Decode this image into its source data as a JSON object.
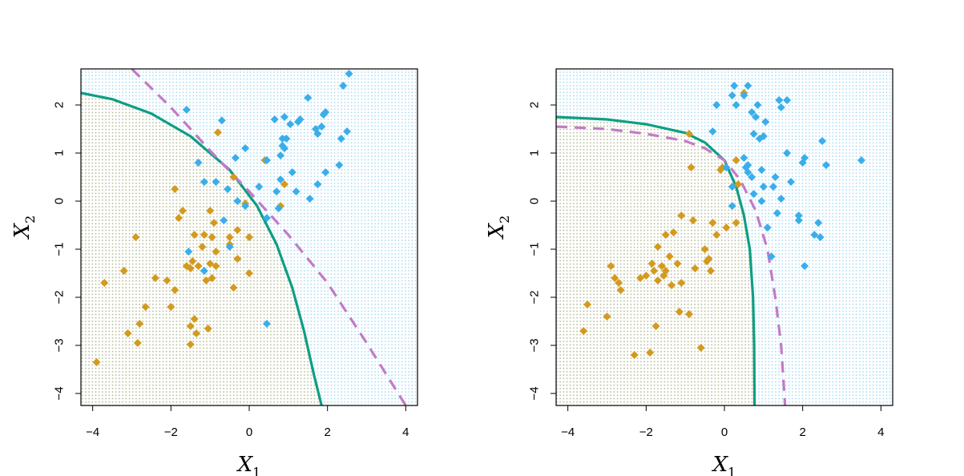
{
  "colors": {
    "orange": "#D49A1E",
    "blue": "#3AAEEA",
    "teal": "#0E9E84",
    "purple": "#C27BC6",
    "dotted": "#000000"
  },
  "chart_data": [
    {
      "type": "scatter",
      "xlabel": "X",
      "xlabel_sub": "1",
      "ylabel": "X",
      "ylabel_sub": "2",
      "xlim": [
        -4.3,
        4.3
      ],
      "ylim": [
        -4.25,
        2.75
      ],
      "x_ticks": [
        -4,
        -2,
        0,
        2,
        4
      ],
      "x_tick_labels": [
        "−4",
        "−2",
        "0",
        "2",
        "4"
      ],
      "y_ticks": [
        -4,
        -3,
        -2,
        -1,
        0,
        1,
        2
      ],
      "y_tick_labels": [
        "−4",
        "−3",
        "−2",
        "−1",
        "0",
        "1",
        "2"
      ],
      "background": "dotted grid shaded by predicted class",
      "boundaries": [
        {
          "style": "solid",
          "color": "teal",
          "points": [
            [
              -4.3,
              2.25
            ],
            [
              -3.5,
              2.12
            ],
            [
              -2.5,
              1.82
            ],
            [
              -1.5,
              1.35
            ],
            [
              -0.5,
              0.65
            ],
            [
              0.2,
              -0.1
            ],
            [
              0.7,
              -0.9
            ],
            [
              1.1,
              -1.8
            ],
            [
              1.4,
              -2.7
            ],
            [
              1.65,
              -3.6
            ],
            [
              1.85,
              -4.25
            ]
          ]
        },
        {
          "style": "dashed",
          "color": "purple",
          "points": [
            [
              -3,
              2.75
            ],
            [
              -2,
              1.95
            ],
            [
              -1,
              1.05
            ],
            [
              0,
              0.2
            ],
            [
              1,
              -0.7
            ],
            [
              2,
              -1.7
            ],
            [
              3,
              -2.95
            ],
            [
              4,
              -4.25
            ]
          ]
        },
        {
          "style": "dotted",
          "color": "black",
          "points": [
            [
              -3,
              2.75
            ],
            [
              -2,
              1.7
            ],
            [
              -1,
              0.75
            ],
            [
              0,
              -0.2
            ],
            [
              1,
              -1.3
            ],
            [
              2,
              -2.35
            ],
            [
              3,
              -3.55
            ],
            [
              3.35,
              -4.25
            ]
          ]
        }
      ],
      "series": [
        {
          "color": "orange",
          "points": [
            [
              -3.9,
              -3.35
            ],
            [
              -3.7,
              -1.7
            ],
            [
              -3.2,
              -1.45
            ],
            [
              -3.1,
              -2.75
            ],
            [
              -2.9,
              -0.75
            ],
            [
              -2.85,
              -2.95
            ],
            [
              -2.8,
              -2.55
            ],
            [
              -2.65,
              -2.2
            ],
            [
              -2.4,
              -1.6
            ],
            [
              -2.1,
              -1.65
            ],
            [
              -2.0,
              -2.2
            ],
            [
              -1.9,
              -1.85
            ],
            [
              -1.9,
              0.25
            ],
            [
              -1.8,
              -0.35
            ],
            [
              -1.7,
              -0.2
            ],
            [
              -1.6,
              -1.35
            ],
            [
              -1.5,
              -1.4
            ],
            [
              -1.5,
              -2.6
            ],
            [
              -1.5,
              -2.98
            ],
            [
              -1.45,
              -1.25
            ],
            [
              -1.4,
              -0.7
            ],
            [
              -1.4,
              -2.45
            ],
            [
              -1.35,
              -2.75
            ],
            [
              -1.3,
              -1.35
            ],
            [
              -1.2,
              -0.95
            ],
            [
              -1.15,
              -0.7
            ],
            [
              -1.1,
              -1.65
            ],
            [
              -1.05,
              -2.65
            ],
            [
              -1.0,
              -0.2
            ],
            [
              -1.0,
              -1.3
            ],
            [
              -0.95,
              -0.75
            ],
            [
              -0.95,
              -1.6
            ],
            [
              -0.9,
              -0.45
            ],
            [
              -0.85,
              -1.05
            ],
            [
              -0.85,
              -1.35
            ],
            [
              -0.8,
              1.43
            ],
            [
              -0.5,
              -0.75
            ],
            [
              -0.5,
              -0.9
            ],
            [
              -0.4,
              0.5
            ],
            [
              -0.4,
              -1.8
            ],
            [
              -0.3,
              -0.6
            ],
            [
              -0.3,
              -1.2
            ],
            [
              -0.1,
              -0.05
            ],
            [
              0.0,
              -0.75
            ],
            [
              0.0,
              -1.5
            ],
            [
              0.4,
              0.85
            ],
            [
              0.8,
              -0.1
            ],
            [
              0.9,
              0.35
            ]
          ]
        },
        {
          "color": "blue",
          "points": [
            [
              -1.6,
              1.9
            ],
            [
              -1.55,
              -1.05
            ],
            [
              -1.3,
              0.8
            ],
            [
              -1.15,
              0.4
            ],
            [
              -0.85,
              0.4
            ],
            [
              -0.7,
              1.68
            ],
            [
              -0.65,
              -0.4
            ],
            [
              -0.55,
              0.25
            ],
            [
              -0.35,
              0.9
            ],
            [
              -0.3,
              0.0
            ],
            [
              -0.1,
              -0.1
            ],
            [
              -0.1,
              1.1
            ],
            [
              0.25,
              0.3
            ],
            [
              0.45,
              -0.35
            ],
            [
              0.45,
              0.85
            ],
            [
              0.45,
              -2.55
            ],
            [
              0.65,
              1.7
            ],
            [
              0.7,
              0.2
            ],
            [
              0.8,
              0.45
            ],
            [
              0.8,
              0.95
            ],
            [
              0.85,
              1.15
            ],
            [
              0.85,
              1.3
            ],
            [
              0.9,
              1.75
            ],
            [
              0.9,
              1.1
            ],
            [
              0.95,
              1.3
            ],
            [
              1.05,
              1.6
            ],
            [
              1.1,
              0.6
            ],
            [
              1.2,
              0.2
            ],
            [
              1.25,
              1.65
            ],
            [
              1.3,
              1.7
            ],
            [
              1.5,
              2.15
            ],
            [
              1.55,
              0.05
            ],
            [
              1.7,
              1.5
            ],
            [
              1.75,
              1.4
            ],
            [
              1.75,
              0.35
            ],
            [
              1.85,
              1.55
            ],
            [
              1.9,
              1.8
            ],
            [
              1.95,
              1.85
            ],
            [
              1.95,
              0.6
            ],
            [
              2.3,
              0.75
            ],
            [
              2.35,
              1.3
            ],
            [
              2.4,
              2.4
            ],
            [
              2.5,
              1.45
            ],
            [
              2.55,
              2.65
            ],
            [
              -0.5,
              -0.95
            ],
            [
              -1.15,
              -1.45
            ],
            [
              0.75,
              -0.15
            ]
          ]
        }
      ]
    },
    {
      "type": "scatter",
      "xlabel": "X",
      "xlabel_sub": "1",
      "ylabel": "X",
      "ylabel_sub": "2",
      "xlim": [
        -4.3,
        4.3
      ],
      "ylim": [
        -4.25,
        2.75
      ],
      "x_ticks": [
        -4,
        -2,
        0,
        2,
        4
      ],
      "x_tick_labels": [
        "−4",
        "−2",
        "0",
        "2",
        "4"
      ],
      "y_ticks": [
        -4,
        -3,
        -2,
        -1,
        0,
        1,
        2
      ],
      "y_tick_labels": [
        "−4",
        "−3",
        "−2",
        "−1",
        "0",
        "1",
        "2"
      ],
      "background": "dotted grid shaded by predicted class",
      "boundaries": [
        {
          "style": "solid",
          "color": "teal",
          "points": [
            [
              -4.3,
              1.75
            ],
            [
              -3.0,
              1.7
            ],
            [
              -2.0,
              1.6
            ],
            [
              -1.0,
              1.42
            ],
            [
              -0.5,
              1.22
            ],
            [
              0.0,
              0.85
            ],
            [
              0.3,
              0.3
            ],
            [
              0.5,
              -0.3
            ],
            [
              0.65,
              -1.0
            ],
            [
              0.73,
              -2.0
            ],
            [
              0.76,
              -3.0
            ],
            [
              0.77,
              -4.25
            ]
          ]
        },
        {
          "style": "dashed",
          "color": "purple",
          "points": [
            [
              -4.3,
              1.55
            ],
            [
              -3.0,
              1.5
            ],
            [
              -2.0,
              1.4
            ],
            [
              -1.0,
              1.25
            ],
            [
              -0.5,
              1.1
            ],
            [
              0.0,
              0.85
            ],
            [
              0.4,
              0.45
            ],
            [
              0.8,
              -0.2
            ],
            [
              1.1,
              -1.0
            ],
            [
              1.3,
              -2.0
            ],
            [
              1.45,
              -3.0
            ],
            [
              1.55,
              -4.25
            ]
          ]
        },
        {
          "style": "dotted",
          "color": "black",
          "points": [
            [
              -1.7,
              2.75
            ],
            [
              -1.0,
              1.55
            ],
            [
              -0.5,
              0.75
            ],
            [
              0.0,
              0.15
            ],
            [
              0.5,
              -0.7
            ],
            [
              1.0,
              -1.6
            ],
            [
              1.5,
              -2.7
            ],
            [
              1.85,
              -3.6
            ],
            [
              2.1,
              -4.25
            ]
          ]
        }
      ],
      "series": [
        {
          "color": "orange",
          "points": [
            [
              -3.6,
              -2.7
            ],
            [
              -3.5,
              -2.15
            ],
            [
              -3.0,
              -2.4
            ],
            [
              -2.9,
              -1.35
            ],
            [
              -2.8,
              -1.6
            ],
            [
              -2.7,
              -1.7
            ],
            [
              -2.65,
              -1.85
            ],
            [
              -2.3,
              -3.2
            ],
            [
              -2.15,
              -1.6
            ],
            [
              -2.0,
              -1.55
            ],
            [
              -1.9,
              -3.15
            ],
            [
              -1.85,
              -1.3
            ],
            [
              -1.8,
              -1.45
            ],
            [
              -1.75,
              -2.6
            ],
            [
              -1.7,
              -0.95
            ],
            [
              -1.7,
              -1.65
            ],
            [
              -1.6,
              -1.35
            ],
            [
              -1.55,
              -1.55
            ],
            [
              -1.5,
              -0.7
            ],
            [
              -1.5,
              -1.45
            ],
            [
              -1.4,
              -1.15
            ],
            [
              -1.35,
              -1.75
            ],
            [
              -1.3,
              -0.65
            ],
            [
              -1.2,
              -1.3
            ],
            [
              -1.15,
              -2.3
            ],
            [
              -1.1,
              -0.3
            ],
            [
              -1.1,
              -1.7
            ],
            [
              -0.9,
              -2.35
            ],
            [
              -0.9,
              1.4
            ],
            [
              -0.85,
              0.7
            ],
            [
              -0.8,
              -0.4
            ],
            [
              -0.75,
              -1.4
            ],
            [
              -0.6,
              -3.05
            ],
            [
              -0.5,
              -1.0
            ],
            [
              -0.45,
              -1.25
            ],
            [
              -0.4,
              -1.2
            ],
            [
              -0.35,
              -1.45
            ],
            [
              -0.3,
              -0.45
            ],
            [
              -0.2,
              -0.7
            ],
            [
              -0.1,
              0.65
            ],
            [
              -0.05,
              0.7
            ],
            [
              0.3,
              0.85
            ],
            [
              0.35,
              0.35
            ],
            [
              0.5,
              2.25
            ],
            [
              0.3,
              -0.45
            ],
            [
              0.05,
              -0.55
            ]
          ]
        },
        {
          "color": "blue",
          "points": [
            [
              -0.3,
              1.45
            ],
            [
              -0.2,
              2.0
            ],
            [
              0.05,
              0.7
            ],
            [
              0.2,
              0.3
            ],
            [
              0.2,
              -0.1
            ],
            [
              0.2,
              2.2
            ],
            [
              0.25,
              2.4
            ],
            [
              0.3,
              2.0
            ],
            [
              0.5,
              2.2
            ],
            [
              0.6,
              2.4
            ],
            [
              0.6,
              0.6
            ],
            [
              0.6,
              0.75
            ],
            [
              0.7,
              1.85
            ],
            [
              0.7,
              0.5
            ],
            [
              0.75,
              1.4
            ],
            [
              0.75,
              0.15
            ],
            [
              0.8,
              1.75
            ],
            [
              0.85,
              2.0
            ],
            [
              0.9,
              1.3
            ],
            [
              0.95,
              0.0
            ],
            [
              0.95,
              0.65
            ],
            [
              1.0,
              1.35
            ],
            [
              1.0,
              0.3
            ],
            [
              1.05,
              1.65
            ],
            [
              1.1,
              -0.55
            ],
            [
              1.2,
              -1.15
            ],
            [
              1.25,
              0.3
            ],
            [
              1.3,
              0.5
            ],
            [
              1.35,
              -0.25
            ],
            [
              1.4,
              2.1
            ],
            [
              1.45,
              1.95
            ],
            [
              1.45,
              0.05
            ],
            [
              1.6,
              1.0
            ],
            [
              1.6,
              2.1
            ],
            [
              1.7,
              0.4
            ],
            [
              1.9,
              -0.3
            ],
            [
              1.9,
              -0.4
            ],
            [
              2.0,
              0.8
            ],
            [
              2.05,
              0.9
            ],
            [
              2.05,
              -1.35
            ],
            [
              2.3,
              -0.7
            ],
            [
              2.4,
              -0.45
            ],
            [
              2.5,
              1.25
            ],
            [
              2.45,
              -0.75
            ],
            [
              2.6,
              0.75
            ],
            [
              3.5,
              0.85
            ],
            [
              0.5,
              0.9
            ],
            [
              0.55,
              0.7
            ]
          ]
        }
      ]
    }
  ]
}
